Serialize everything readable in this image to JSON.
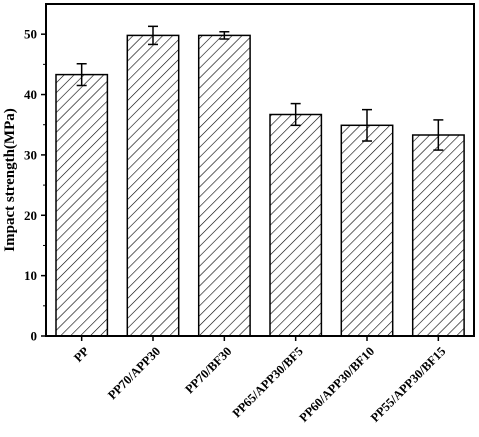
{
  "chart_data": {
    "type": "bar",
    "ylabel": "Impact strength(MPa)",
    "xlabel": "",
    "ylim": [
      0,
      55
    ],
    "yticks": [
      0,
      10,
      20,
      30,
      40,
      50
    ],
    "grid": false,
    "bar_fill": "hatched",
    "categories": [
      "PP",
      "PP70/APP30",
      "PP70/BF30",
      "PP65/APP30/BF5",
      "PP60/APP30/BF10",
      "PP55/APP30/BF15"
    ],
    "values": [
      43.3,
      49.8,
      49.8,
      36.7,
      34.9,
      33.3
    ],
    "errors": [
      1.8,
      1.5,
      0.6,
      1.8,
      2.6,
      2.5
    ]
  }
}
